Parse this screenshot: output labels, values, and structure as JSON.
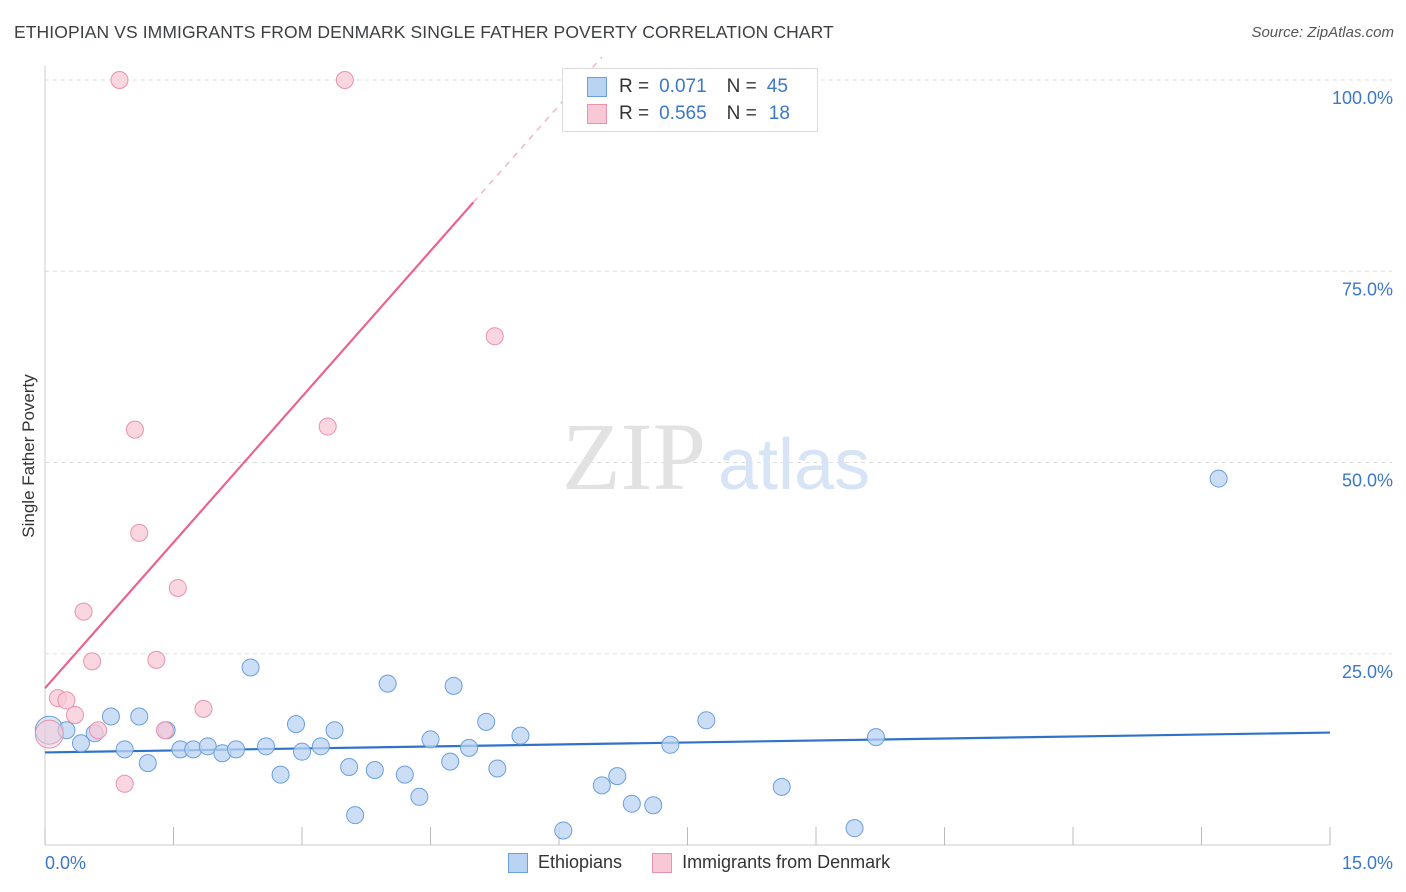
{
  "header": {
    "title": "ETHIOPIAN VS IMMIGRANTS FROM DENMARK SINGLE FATHER POVERTY CORRELATION CHART",
    "source": "Source: ZipAtlas.com"
  },
  "legend_stats": [
    {
      "r_label": "R =",
      "r_value": "0.071",
      "n_label": "N =",
      "n_value": "45"
    },
    {
      "r_label": "R =",
      "r_value": "0.565",
      "n_label": "N =",
      "n_value": "18"
    }
  ],
  "colors": {
    "blue_fill": "#b9d3f3",
    "blue_stroke": "#6a9fdc",
    "blue_line": "#2f73c9",
    "pink_fill": "#f8c8d6",
    "pink_stroke": "#e992ad",
    "pink_line": "#e8648f",
    "tick_label": "#3b78c7",
    "grid": "#dddddd"
  },
  "watermark": {
    "part1": "ZIP",
    "part2": "atlas"
  },
  "chart_data": {
    "type": "scatter",
    "xlabel": "",
    "ylabel": "Single Father Poverty",
    "xlim": [
      0,
      15
    ],
    "ylim": [
      0,
      100
    ],
    "x_tick_labels": [
      "0.0%",
      "15.0%"
    ],
    "y_ticks": [
      25,
      50,
      75,
      100
    ],
    "y_tick_labels": [
      "25.0%",
      "50.0%",
      "75.0%",
      "100.0%"
    ],
    "grid": "horizontal dashed",
    "series": [
      {
        "name": "Ethiopians",
        "color": "#b9d3f3",
        "points": [
          [
            0.05,
            15.0
          ],
          [
            0.25,
            15.0
          ],
          [
            0.42,
            13.3
          ],
          [
            0.58,
            14.6
          ],
          [
            0.77,
            16.8
          ],
          [
            0.93,
            12.5
          ],
          [
            1.1,
            16.8
          ],
          [
            1.2,
            10.7
          ],
          [
            1.42,
            15.0
          ],
          [
            1.58,
            12.5
          ],
          [
            1.73,
            12.5
          ],
          [
            1.9,
            12.9
          ],
          [
            2.07,
            12.0
          ],
          [
            2.23,
            12.5
          ],
          [
            2.4,
            23.2
          ],
          [
            2.58,
            12.9
          ],
          [
            2.75,
            9.2
          ],
          [
            2.93,
            15.8
          ],
          [
            3.0,
            12.2
          ],
          [
            3.22,
            12.9
          ],
          [
            3.38,
            15.0
          ],
          [
            3.55,
            10.2
          ],
          [
            3.62,
            3.9
          ],
          [
            3.85,
            9.8
          ],
          [
            4.0,
            21.1
          ],
          [
            4.2,
            9.2
          ],
          [
            4.37,
            6.3
          ],
          [
            4.5,
            13.8
          ],
          [
            4.73,
            10.9
          ],
          [
            4.77,
            20.8
          ],
          [
            4.95,
            12.7
          ],
          [
            5.15,
            16.1
          ],
          [
            5.28,
            10.0
          ],
          [
            5.55,
            14.3
          ],
          [
            6.05,
            1.9
          ],
          [
            6.5,
            7.8
          ],
          [
            6.68,
            9.0
          ],
          [
            6.85,
            5.4
          ],
          [
            7.1,
            5.2
          ],
          [
            7.3,
            13.1
          ],
          [
            7.72,
            16.3
          ],
          [
            8.6,
            7.6
          ],
          [
            9.45,
            2.2
          ],
          [
            9.7,
            14.1
          ],
          [
            13.7,
            47.9
          ]
        ]
      },
      {
        "name": "Immigrants from Denmark",
        "color": "#f8c8d6",
        "points": [
          [
            0.05,
            14.5
          ],
          [
            0.15,
            19.2
          ],
          [
            0.25,
            18.9
          ],
          [
            0.35,
            17.0
          ],
          [
            0.45,
            30.5
          ],
          [
            0.55,
            24.0
          ],
          [
            0.62,
            15.0
          ],
          [
            0.87,
            100.0
          ],
          [
            0.93,
            8.0
          ],
          [
            1.05,
            54.3
          ],
          [
            1.1,
            40.8
          ],
          [
            1.3,
            24.2
          ],
          [
            1.4,
            15.0
          ],
          [
            1.55,
            33.6
          ],
          [
            1.85,
            17.8
          ],
          [
            3.3,
            54.7
          ],
          [
            3.5,
            100.0
          ],
          [
            5.25,
            66.5
          ]
        ]
      }
    ],
    "trendlines": [
      {
        "series": "Ethiopians",
        "x": [
          0,
          15
        ],
        "y": [
          12.1,
          14.7
        ]
      },
      {
        "series": "Immigrants from Denmark",
        "x": [
          0,
          5.0
        ],
        "y": [
          20.5,
          84.0
        ],
        "dashed_extension_to": [
          6.5,
          103.0
        ]
      }
    ]
  },
  "bottom_legend": {
    "items": [
      "Ethiopians",
      "Immigrants from Denmark"
    ]
  }
}
